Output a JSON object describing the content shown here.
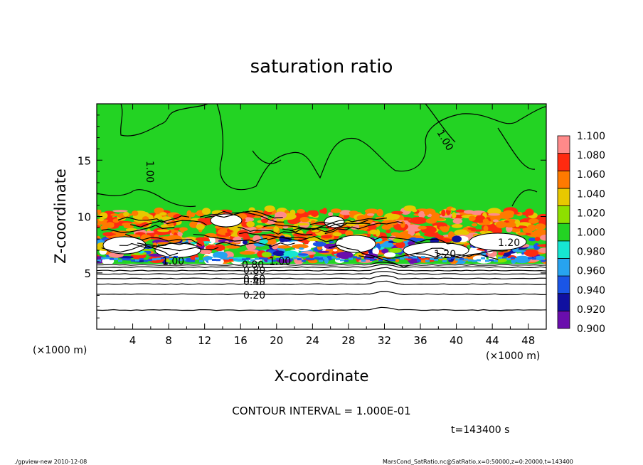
{
  "chart_data": {
    "type": "heatmap",
    "title": "saturation ratio",
    "xlabel": "X-coordinate",
    "ylabel": "Z-coordinate",
    "x_unit": "(×1000 m)",
    "z_unit": "(×1000 m)",
    "xlim": [
      0,
      50
    ],
    "zlim": [
      0,
      20
    ],
    "x_ticks": [
      4,
      8,
      12,
      16,
      20,
      24,
      28,
      32,
      36,
      40,
      44,
      48
    ],
    "z_ticks": [
      5,
      10,
      15
    ],
    "colorbar": {
      "levels": [
        "0.900",
        "0.920",
        "0.940",
        "0.960",
        "0.980",
        "1.000",
        "1.020",
        "1.040",
        "1.060",
        "1.080",
        "1.100"
      ],
      "colors": [
        "#6a0dad",
        "#1010a0",
        "#1a55e6",
        "#27a3f0",
        "#16e6d2",
        "#23d323",
        "#8ee000",
        "#e8c800",
        "#ff7a00",
        "#ff2a10",
        "#ff8a8a"
      ]
    },
    "contour_labels": [
      "1.00",
      "1.00",
      "1.00",
      "1.20",
      "0.80",
      "0.60",
      "0.40",
      "0.20",
      "1.00",
      "0.80",
      "1.20"
    ],
    "contour_interval": "CONTOUR INTERVAL = 1.000E-01",
    "time_label": "t=143400 s",
    "script_label": "./gpview-new  2010-12-08",
    "source_label": "MarsCond_SatRatio.nc@SatRatio,x=0:50000,z=0:20000,t=143400",
    "regions": {
      "dry_layer_top_km": 5.8,
      "moist_band_bottom_km": 6.0,
      "moist_band_top_km": 11.0,
      "contour_levels_below": [
        {
          "z_km": 1.7,
          "value": "0.10"
        },
        {
          "z_km": 3.1,
          "value": "0.20"
        },
        {
          "z_km": 4.0,
          "value": "0.30"
        },
        {
          "z_km": 4.5,
          "value": "0.40"
        },
        {
          "z_km": 4.9,
          "value": "0.50"
        },
        {
          "z_km": 5.2,
          "value": "0.60"
        },
        {
          "z_km": 5.5,
          "value": "0.70"
        },
        {
          "z_km": 5.7,
          "value": "0.80"
        }
      ]
    }
  }
}
